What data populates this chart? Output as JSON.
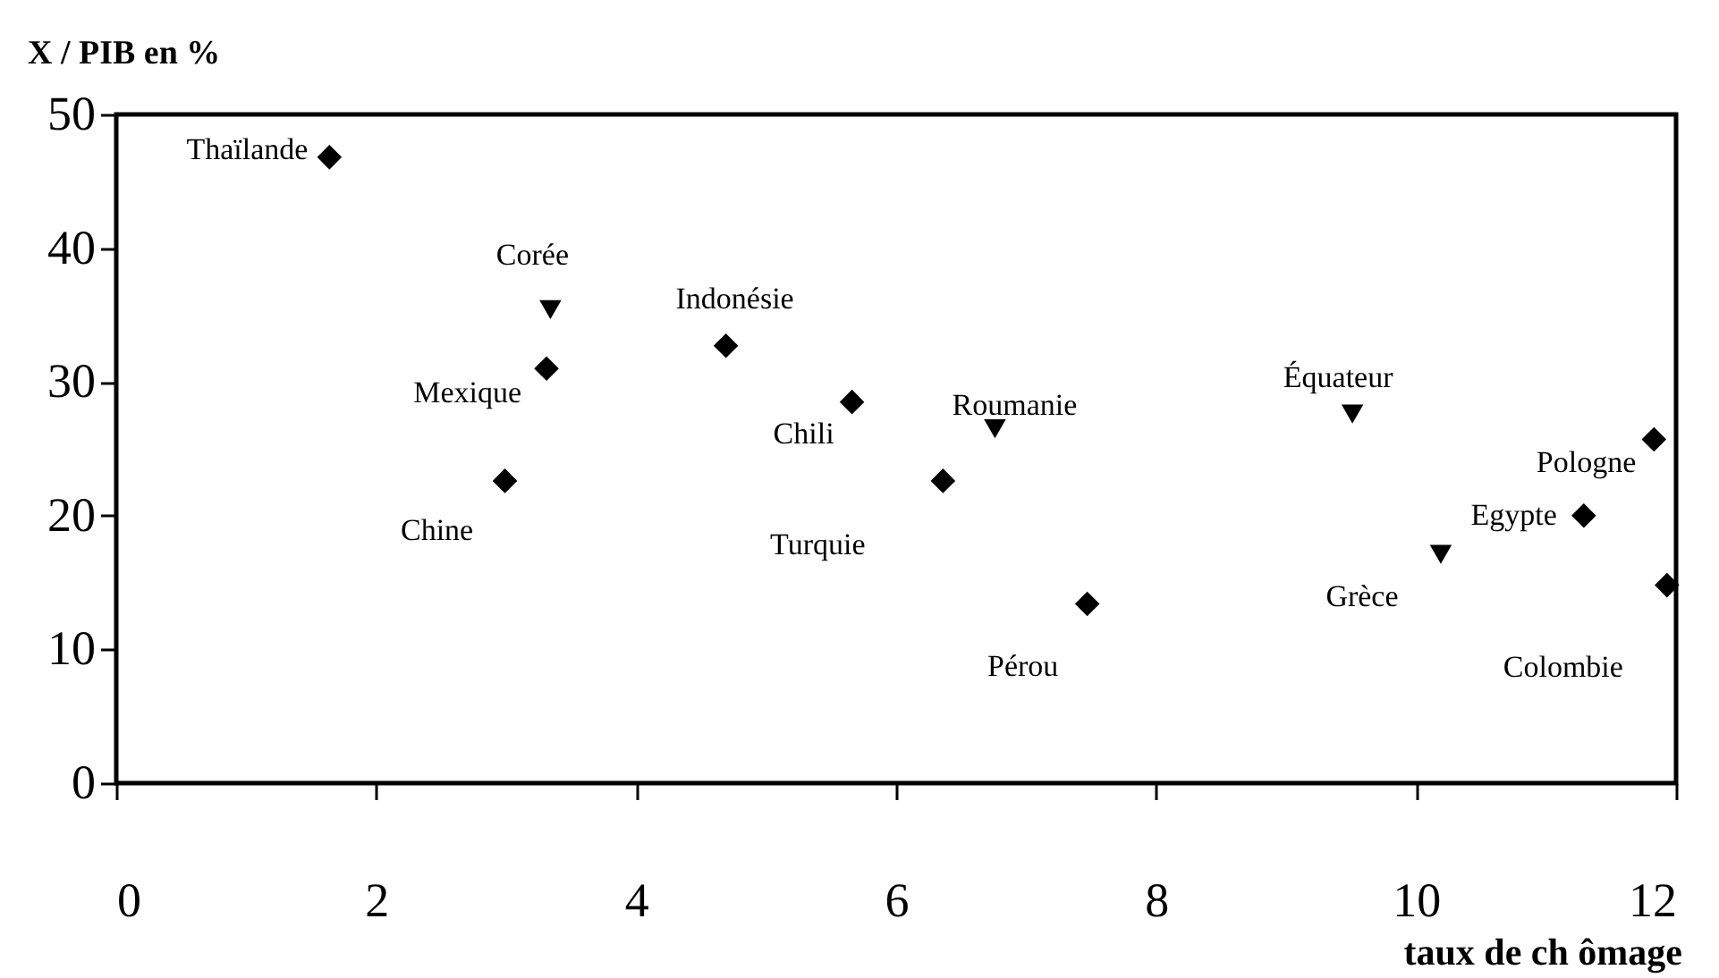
{
  "chart_data": {
    "type": "scatter",
    "xlabel": "taux de ch ômage",
    "ylabel": "X / PIB en %",
    "xlim": [
      0,
      12
    ],
    "ylim": [
      0,
      50
    ],
    "xticks": [
      0,
      2,
      4,
      6,
      8,
      10,
      12
    ],
    "yticks": [
      0,
      10,
      20,
      30,
      40,
      50
    ],
    "grid": false,
    "series": [
      {
        "color": "#000000",
        "marker": "diamond",
        "x": [
          1.64,
          3.31,
          2.99,
          4.69,
          5.66,
          6.36,
          7.47,
          11.29,
          11.83,
          11.93
        ],
        "values": [
          46.8,
          31.0,
          22.6,
          32.7,
          28.5,
          22.6,
          13.4,
          20.0,
          25.7,
          14.8
        ]
      },
      {
        "color": "#000000",
        "marker": "triangle",
        "x": [
          3.34,
          6.76,
          9.51,
          10.19
        ],
        "values": [
          35.4,
          26.5,
          27.6,
          17.1
        ]
      }
    ],
    "annotations": [
      {
        "text": "Thaïlande",
        "x": 1.64,
        "y": 46.8
      },
      {
        "text": "Mexique",
        "x": 3.31,
        "y": 31.0
      },
      {
        "text": "Chine",
        "x": 2.99,
        "y": 22.6
      },
      {
        "text": "Indonésie",
        "x": 4.69,
        "y": 32.7
      },
      {
        "text": "Chili",
        "x": 5.66,
        "y": 28.5
      },
      {
        "text": "Turquie",
        "x": 6.36,
        "y": 22.6
      },
      {
        "text": "Pérou",
        "x": 7.47,
        "y": 13.4
      },
      {
        "text": "Egypte",
        "x": 11.29,
        "y": 20.0
      },
      {
        "text": "Pologne",
        "x": 11.83,
        "y": 25.7
      },
      {
        "text": "Colombie",
        "x": 11.93,
        "y": 14.8
      },
      {
        "text": "Corée",
        "x": 3.34,
        "y": 35.4
      },
      {
        "text": "Roumanie",
        "x": 6.76,
        "y": 26.5
      },
      {
        "text": "Équateur",
        "x": 9.51,
        "y": 27.6
      },
      {
        "text": "Grèce",
        "x": 10.19,
        "y": 17.1
      }
    ]
  }
}
